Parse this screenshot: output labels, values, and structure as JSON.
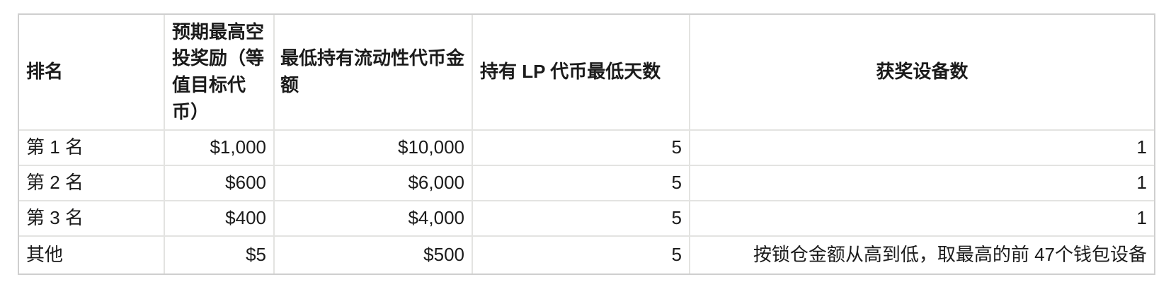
{
  "colors": {
    "background": "#ffffff",
    "text": "#1b1b1b",
    "border_outer": "#cfcfcf",
    "border_inner": "#e3e3e1"
  },
  "table": {
    "headers": [
      "排名",
      "预期最高空投奖励（等值目标代币）",
      "最低持有流动性代币金额",
      "持有 LP 代币最低天数",
      "获奖设备数"
    ],
    "rows": [
      [
        "第 1 名",
        "$1,000",
        "$10,000",
        "5",
        "1"
      ],
      [
        "第 2 名",
        "$600",
        "$6,000",
        "5",
        "1"
      ],
      [
        "第 3 名",
        "$400",
        "$4,000",
        "5",
        "1"
      ],
      [
        "其他",
        "$5",
        "$500",
        "5",
        "按锁仓金额从高到低，取最高的前 47个钱包设备"
      ]
    ]
  }
}
